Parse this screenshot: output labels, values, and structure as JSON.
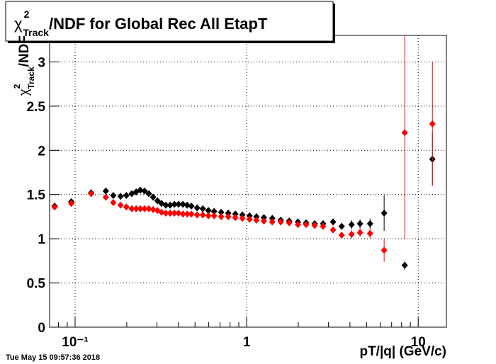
{
  "chart_data": {
    "type": "scatter",
    "title": {
      "symbol": "χ",
      "sup": "2",
      "sub": "Track",
      "rest": "/NDF for Global Rec All EtapT"
    },
    "y_label": {
      "symbol": "χ",
      "sup": "2",
      "sub": "Track",
      "rest": "/NDF"
    },
    "x_label": "pT/|q| (GeV/c)",
    "footer": "Tue May 15 09:57:36 2018",
    "log_x": true,
    "grid": true,
    "xlim": [
      0.071,
      14.6
    ],
    "ylim": [
      0,
      3.3
    ],
    "xticks": [
      {
        "value": 0.1,
        "label": "10⁻¹"
      },
      1,
      10
    ],
    "yticks": [
      0,
      0.5,
      1,
      1.5,
      2,
      2.5,
      3
    ],
    "x": [
      0.076,
      0.095,
      0.124,
      0.151,
      0.167,
      0.184,
      0.199,
      0.214,
      0.227,
      0.24,
      0.254,
      0.269,
      0.285,
      0.302,
      0.319,
      0.338,
      0.358,
      0.379,
      0.401,
      0.425,
      0.45,
      0.476,
      0.514,
      0.555,
      0.598,
      0.646,
      0.71,
      0.781,
      0.859,
      0.944,
      1.04,
      1.14,
      1.26,
      1.41,
      1.58,
      1.77,
      1.99,
      2.22,
      2.49,
      2.79,
      3.19,
      3.58,
      4.09,
      4.58,
      5.24,
      6.33,
      8.35,
      12.1
    ],
    "series": [
      {
        "color": "#000000",
        "values": [
          1.37,
          1.42,
          1.52,
          1.54,
          1.49,
          1.48,
          1.49,
          1.51,
          1.53,
          1.55,
          1.54,
          1.51,
          1.47,
          1.43,
          1.4,
          1.38,
          1.38,
          1.39,
          1.39,
          1.39,
          1.38,
          1.37,
          1.35,
          1.34,
          1.32,
          1.31,
          1.3,
          1.29,
          1.28,
          1.27,
          1.26,
          1.25,
          1.24,
          1.23,
          1.21,
          1.2,
          1.19,
          1.18,
          1.17,
          1.17,
          1.19,
          1.14,
          1.16,
          1.17,
          1.17,
          1.29,
          0.7,
          1.9
        ],
        "yerr": [
          0.01,
          0.01,
          0.01,
          0.01,
          0.01,
          0.01,
          0.01,
          0.01,
          0.01,
          0.01,
          0.01,
          0.01,
          0.01,
          0.01,
          0.01,
          0.01,
          0.01,
          0.01,
          0.01,
          0.01,
          0.01,
          0.01,
          0.01,
          0.01,
          0.01,
          0.01,
          0.01,
          0.01,
          0.01,
          0.01,
          0.01,
          0.01,
          0.01,
          0.01,
          0.01,
          0.01,
          0.01,
          0.01,
          0.02,
          0.02,
          0.03,
          0.03,
          0.05,
          0.05,
          0.06,
          0.2,
          0.05,
          0.3
        ]
      },
      {
        "color": "#ff0000",
        "values": [
          1.36,
          1.4,
          1.51,
          1.47,
          1.41,
          1.38,
          1.36,
          1.34,
          1.34,
          1.34,
          1.34,
          1.34,
          1.33,
          1.32,
          1.3,
          1.29,
          1.29,
          1.29,
          1.29,
          1.28,
          1.28,
          1.28,
          1.27,
          1.27,
          1.26,
          1.26,
          1.25,
          1.25,
          1.24,
          1.23,
          1.22,
          1.21,
          1.2,
          1.19,
          1.19,
          1.18,
          1.16,
          1.16,
          1.15,
          1.14,
          1.1,
          1.04,
          1.05,
          1.07,
          1.06,
          0.87,
          2.2,
          2.3
        ],
        "yerr": [
          0.01,
          0.01,
          0.01,
          0.01,
          0.01,
          0.01,
          0.01,
          0.01,
          0.01,
          0.01,
          0.01,
          0.01,
          0.01,
          0.01,
          0.01,
          0.01,
          0.01,
          0.01,
          0.01,
          0.01,
          0.01,
          0.01,
          0.01,
          0.01,
          0.01,
          0.01,
          0.01,
          0.01,
          0.01,
          0.01,
          0.01,
          0.01,
          0.01,
          0.01,
          0.01,
          0.01,
          0.01,
          0.01,
          0.02,
          0.02,
          0.03,
          0.03,
          0.05,
          0.05,
          0.06,
          0.13,
          1.2,
          0.7
        ]
      }
    ]
  }
}
